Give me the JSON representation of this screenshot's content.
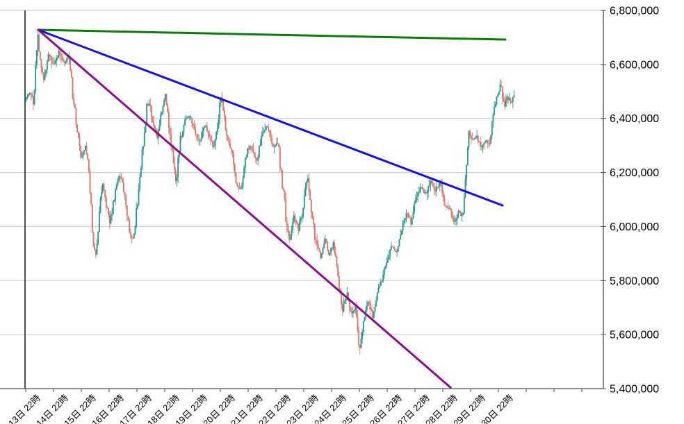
{
  "chart_data": {
    "type": "candlestick",
    "title": "",
    "x_axis": {
      "labels": [
        "13日 22時",
        "14日 22時",
        "15日 22時",
        "16日 22時",
        "17日 22時",
        "18日 22時",
        "19日 22時",
        "20日 22時",
        "21日 22時",
        "22日 22時",
        "23日 22時",
        "24日 22時",
        "25日 22時",
        "26日 22時",
        "27日 22時",
        "28日 22時",
        "29日 22時",
        "30日 22時"
      ],
      "unlabeled_extra_ticks": 3,
      "label_rotation_deg": -45
    },
    "y_axis": {
      "side": "right",
      "min": 5400000,
      "max": 6800000,
      "step": 200000,
      "tick_labels": [
        "6,800,000",
        "6,600,000",
        "6,400,000",
        "6,200,000",
        "6,000,000",
        "5,800,000",
        "5,600,000",
        "5,400,000"
      ]
    },
    "grid": true,
    "legend": false,
    "series": {
      "name": "price",
      "candles_per_day": 24,
      "anchors_day_price": [
        [
          0,
          6470000
        ],
        [
          0.15,
          6500000
        ],
        [
          0.3,
          6450000
        ],
        [
          0.45,
          6720000
        ],
        [
          0.55,
          6590000
        ],
        [
          0.68,
          6540000
        ],
        [
          0.83,
          6640000
        ],
        [
          1.03,
          6600000
        ],
        [
          1.23,
          6650000
        ],
        [
          1.4,
          6600000
        ],
        [
          1.58,
          6630000
        ],
        [
          1.73,
          6470000
        ],
        [
          1.88,
          6350000
        ],
        [
          2.03,
          6250000
        ],
        [
          2.15,
          6310000
        ],
        [
          2.28,
          6230000
        ],
        [
          2.43,
          5950000
        ],
        [
          2.55,
          5890000
        ],
        [
          2.68,
          6070000
        ],
        [
          2.8,
          6170000
        ],
        [
          2.93,
          6070000
        ],
        [
          3.05,
          6020000
        ],
        [
          3.2,
          6100000
        ],
        [
          3.35,
          6200000
        ],
        [
          3.48,
          6170000
        ],
        [
          3.63,
          6070000
        ],
        [
          3.78,
          5970000
        ],
        [
          3.9,
          5950000
        ],
        [
          4.05,
          6090000
        ],
        [
          4.23,
          6300000
        ],
        [
          4.38,
          6450000
        ],
        [
          4.48,
          6460000
        ],
        [
          4.6,
          6380000
        ],
        [
          4.75,
          6320000
        ],
        [
          4.9,
          6420000
        ],
        [
          5.05,
          6490000
        ],
        [
          5.2,
          6340000
        ],
        [
          5.33,
          6240000
        ],
        [
          5.43,
          6170000
        ],
        [
          5.58,
          6310000
        ],
        [
          5.75,
          6400000
        ],
        [
          5.93,
          6410000
        ],
        [
          6.1,
          6350000
        ],
        [
          6.28,
          6310000
        ],
        [
          6.45,
          6380000
        ],
        [
          6.63,
          6330000
        ],
        [
          6.78,
          6290000
        ],
        [
          6.93,
          6380000
        ],
        [
          7.05,
          6490000
        ],
        [
          7.23,
          6340000
        ],
        [
          7.43,
          6280000
        ],
        [
          7.6,
          6160000
        ],
        [
          7.78,
          6130000
        ],
        [
          7.95,
          6270000
        ],
        [
          8.13,
          6300000
        ],
        [
          8.33,
          6240000
        ],
        [
          8.53,
          6350000
        ],
        [
          8.73,
          6370000
        ],
        [
          8.93,
          6290000
        ],
        [
          9.08,
          6310000
        ],
        [
          9.23,
          6180000
        ],
        [
          9.38,
          6020000
        ],
        [
          9.53,
          5950000
        ],
        [
          9.68,
          6040000
        ],
        [
          9.83,
          5990000
        ],
        [
          10,
          6070000
        ],
        [
          10.15,
          6190000
        ],
        [
          10.3,
          6050000
        ],
        [
          10.45,
          5950000
        ],
        [
          10.63,
          5890000
        ],
        [
          10.78,
          5960000
        ],
        [
          10.93,
          5890000
        ],
        [
          11.08,
          5940000
        ],
        [
          11.25,
          5810000
        ],
        [
          11.4,
          5690000
        ],
        [
          11.58,
          5760000
        ],
        [
          11.73,
          5660000
        ],
        [
          11.88,
          5710000
        ],
        [
          12.03,
          5540000
        ],
        [
          12.18,
          5650000
        ],
        [
          12.35,
          5730000
        ],
        [
          12.5,
          5670000
        ],
        [
          12.68,
          5760000
        ],
        [
          12.85,
          5810000
        ],
        [
          13.03,
          5880000
        ],
        [
          13.18,
          5930000
        ],
        [
          13.35,
          5900000
        ],
        [
          13.53,
          5990000
        ],
        [
          13.7,
          6050000
        ],
        [
          13.88,
          6020000
        ],
        [
          14.05,
          6100000
        ],
        [
          14.23,
          6150000
        ],
        [
          14.4,
          6110000
        ],
        [
          14.58,
          6170000
        ],
        [
          14.75,
          6130000
        ],
        [
          14.93,
          6160000
        ],
        [
          15.1,
          6080000
        ],
        [
          15.28,
          6060000
        ],
        [
          15.43,
          6020000
        ],
        [
          15.58,
          6060000
        ],
        [
          15.73,
          6030000
        ],
        [
          15.85,
          6190000
        ],
        [
          15.95,
          6350000
        ],
        [
          16.1,
          6310000
        ],
        [
          16.25,
          6340000
        ],
        [
          16.4,
          6290000
        ],
        [
          16.55,
          6320000
        ],
        [
          16.7,
          6300000
        ],
        [
          16.85,
          6420000
        ],
        [
          17,
          6500000
        ],
        [
          17.1,
          6530000
        ],
        [
          17.23,
          6450000
        ],
        [
          17.35,
          6480000
        ],
        [
          17.48,
          6460000
        ],
        [
          17.58,
          6480000
        ]
      ]
    },
    "trendlines": [
      {
        "name": "green-resistance-line",
        "color": "#077d07",
        "from_day": 0.45,
        "from_price": 6728000,
        "to_day": 17.25,
        "to_price": 6692000
      },
      {
        "name": "blue-descending-resistance-line",
        "color": "#1111e8",
        "from_day": 0.45,
        "from_price": 6728000,
        "to_day": 17.15,
        "to_price": 6078000
      },
      {
        "name": "purple-steep-downtrend-line",
        "color": "#8e0d8e",
        "from_day": 0.45,
        "from_price": 6728000,
        "to_day": 15.28,
        "to_price": 5404000
      }
    ],
    "colors": {
      "up_candle": "#289a8b",
      "down_candle": "#e0746b",
      "gridline": "#c8c8c8",
      "axis": "#4d4d4d",
      "left_axis": "#262626",
      "label_text": "#000000",
      "background": "#ffffff"
    }
  }
}
